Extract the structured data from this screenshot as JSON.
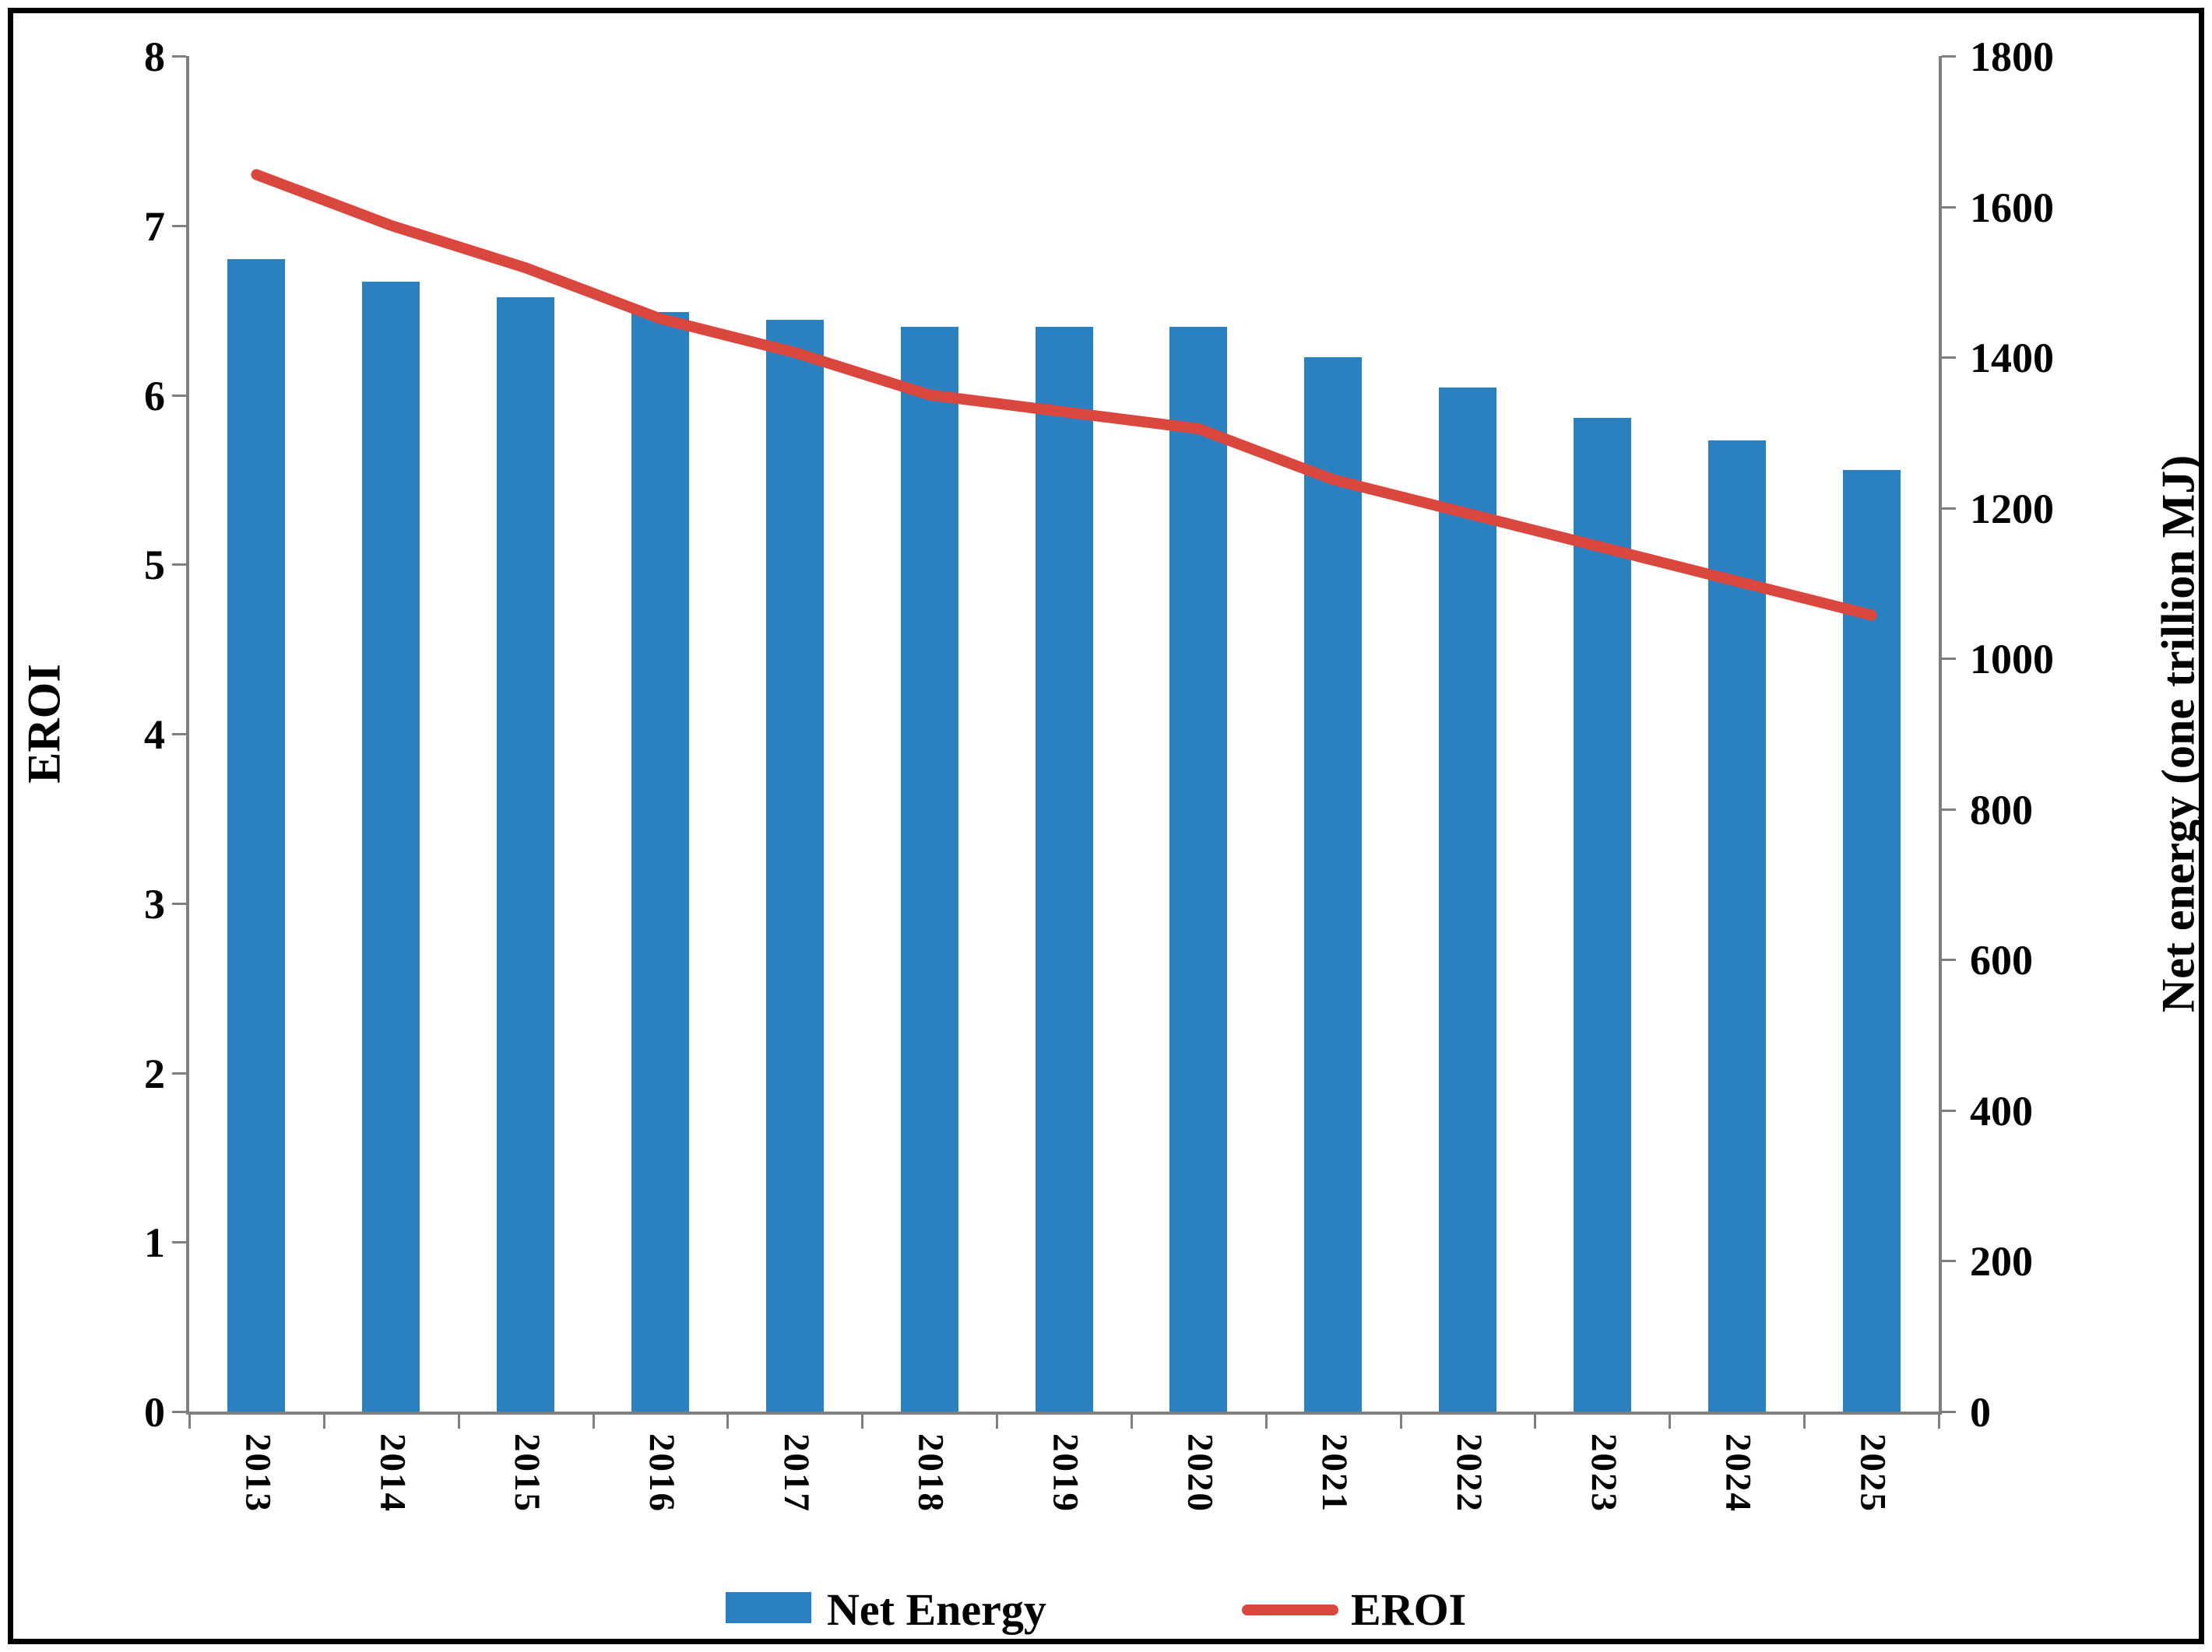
{
  "chart_data": {
    "type": "bar",
    "subtype": "bar+line dual axis",
    "categories": [
      "2013",
      "2014",
      "2015",
      "2016",
      "2017",
      "2018",
      "2019",
      "2020",
      "2021",
      "2022",
      "2023",
      "2024",
      "2025"
    ],
    "series": [
      {
        "name": "Net Energy",
        "type": "bar",
        "axis": "right",
        "color": "#2b80c0",
        "values": [
          1530,
          1500,
          1480,
          1460,
          1450,
          1440,
          1440,
          1440,
          1400,
          1360,
          1320,
          1290,
          1250
        ]
      },
      {
        "name": "EROI",
        "type": "line",
        "axis": "left",
        "color": "#d9473f",
        "values": [
          7.3,
          7.0,
          6.75,
          6.45,
          6.25,
          6.0,
          5.9,
          5.8,
          5.5,
          5.3,
          5.1,
          4.9,
          4.7
        ]
      }
    ],
    "left_axis": {
      "label": "EROI",
      "min": 0,
      "max": 8,
      "step": 1,
      "ticks": [
        "0",
        "1",
        "2",
        "3",
        "4",
        "5",
        "6",
        "7",
        "8"
      ]
    },
    "right_axis": {
      "label": "Net energy (one trillion MJ)",
      "min": 0,
      "max": 1800,
      "step": 200,
      "ticks": [
        "0",
        "200",
        "400",
        "600",
        "800",
        "1000",
        "1200",
        "1400",
        "1600",
        "1800"
      ]
    },
    "grid": false,
    "legend_position": "bottom-center",
    "legend": [
      {
        "label": "Net Energy",
        "swatch": "rect",
        "color": "#2b80c0"
      },
      {
        "label": "EROI",
        "swatch": "line",
        "color": "#d9473f"
      }
    ],
    "colors": {
      "bar": "#2b80c0",
      "line": "#d9473f",
      "axis": "#7f7f7f",
      "text": "#000000",
      "border": "#000000",
      "background": "#ffffff"
    }
  }
}
